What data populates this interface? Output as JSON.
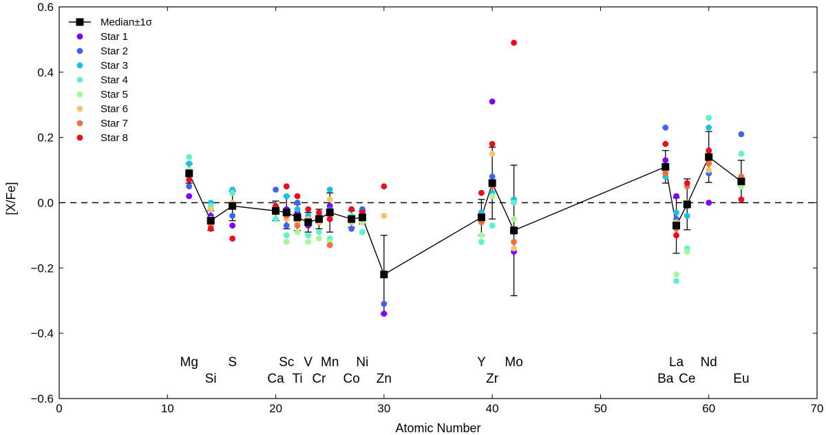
{
  "chart_data": {
    "type": "scatter",
    "xlabel": "Atomic Number",
    "ylabel": "[X/Fe]",
    "xlim": [
      0,
      70
    ],
    "ylim": [
      -0.6,
      0.6
    ],
    "x_ticks": [
      0,
      10,
      20,
      30,
      40,
      50,
      60,
      70
    ],
    "y_ticks": [
      -0.6,
      -0.4,
      -0.2,
      0.0,
      0.2,
      0.4,
      0.6
    ],
    "y_tick_labels": [
      "−0.6",
      "−0.4",
      "−0.2",
      "0.0",
      "0.2",
      "0.4",
      "0.6"
    ],
    "reference_line": {
      "y": 0.0,
      "style": "dashed"
    },
    "legend": {
      "placement": "top-left",
      "median_label": "Median±1σ"
    },
    "median_series": {
      "name": "Median±1σ",
      "color": "#000000",
      "points": [
        {
          "z": 12,
          "y": 0.09,
          "err": 0.03
        },
        {
          "z": 14,
          "y": -0.055,
          "err": 0.03
        },
        {
          "z": 16,
          "y": -0.01,
          "err": 0.045
        },
        {
          "z": 20,
          "y": -0.025,
          "err": 0.03
        },
        {
          "z": 21,
          "y": -0.03,
          "err": 0.05
        },
        {
          "z": 22,
          "y": -0.045,
          "err": 0.04
        },
        {
          "z": 23,
          "y": -0.06,
          "err": 0.03
        },
        {
          "z": 24,
          "y": -0.05,
          "err": 0.03
        },
        {
          "z": 25,
          "y": -0.03,
          "err": 0.06
        },
        {
          "z": 27,
          "y": -0.05,
          "err": 0.025
        },
        {
          "z": 28,
          "y": -0.045,
          "err": 0.02
        },
        {
          "z": 30,
          "y": -0.22,
          "err": 0.12
        },
        {
          "z": 39,
          "y": -0.045,
          "err": 0.055
        },
        {
          "z": 40,
          "y": 0.06,
          "err": 0.11
        },
        {
          "z": 42,
          "y": -0.085,
          "err": 0.2
        },
        {
          "z": 56,
          "y": 0.11,
          "err": 0.05
        },
        {
          "z": 57,
          "y": -0.07,
          "err": 0.085
        },
        {
          "z": 58,
          "y": -0.005,
          "err": 0.078
        },
        {
          "z": 60,
          "y": 0.14,
          "err": 0.078
        },
        {
          "z": 63,
          "y": 0.065,
          "err": 0.065
        }
      ]
    },
    "series": [
      {
        "name": "Star 1",
        "color": "#7f00ff",
        "points": [
          [
            12,
            0.02
          ],
          [
            14,
            -0.04
          ],
          [
            16,
            -0.07
          ],
          [
            20,
            -0.02
          ],
          [
            21,
            -0.02
          ],
          [
            22,
            -0.03
          ],
          [
            23,
            -0.07
          ],
          [
            24,
            -0.06
          ],
          [
            25,
            -0.01
          ],
          [
            27,
            -0.05
          ],
          [
            28,
            -0.06
          ],
          [
            30,
            -0.34
          ],
          [
            39,
            -0.03
          ],
          [
            40,
            0.31
          ],
          [
            42,
            -0.15
          ],
          [
            56,
            0.13
          ],
          [
            57,
            0.02
          ],
          [
            58,
            -0.01
          ],
          [
            60,
            0.0
          ],
          [
            63,
            0.06
          ]
        ]
      },
      {
        "name": "Star 2",
        "color": "#4062fa",
        "points": [
          [
            12,
            0.05
          ],
          [
            14,
            -0.06
          ],
          [
            16,
            -0.04
          ],
          [
            20,
            0.04
          ],
          [
            21,
            -0.07
          ],
          [
            22,
            0.0
          ],
          [
            23,
            -0.05
          ],
          [
            24,
            -0.04
          ],
          [
            25,
            -0.02
          ],
          [
            27,
            -0.08
          ],
          [
            28,
            -0.02
          ],
          [
            30,
            -0.31
          ],
          [
            39,
            -0.04
          ],
          [
            40,
            0.08
          ],
          [
            42,
            -0.09
          ],
          [
            56,
            0.23
          ],
          [
            57,
            -0.05
          ],
          [
            58,
            -0.01
          ],
          [
            60,
            0.09
          ],
          [
            63,
            0.21
          ]
        ]
      },
      {
        "name": "Star 3",
        "color": "#1dc0e4",
        "points": [
          [
            12,
            0.12
          ],
          [
            14,
            0.0
          ],
          [
            16,
            0.04
          ],
          [
            20,
            -0.01
          ],
          [
            21,
            0.02
          ],
          [
            22,
            -0.02
          ],
          [
            23,
            -0.04
          ],
          [
            24,
            -0.04
          ],
          [
            25,
            0.04
          ],
          [
            27,
            -0.06
          ],
          [
            28,
            -0.09
          ],
          [
            30,
            -0.22
          ],
          [
            39,
            -0.03
          ],
          [
            40,
            0.03
          ],
          [
            42,
            0.01
          ],
          [
            56,
            0.08
          ],
          [
            57,
            -0.03
          ],
          [
            58,
            -0.04
          ],
          [
            60,
            0.23
          ],
          [
            63,
            0.05
          ]
        ]
      },
      {
        "name": "Star 4",
        "color": "#5df3cc",
        "points": [
          [
            12,
            0.14
          ],
          [
            14,
            -0.01
          ],
          [
            16,
            0.03
          ],
          [
            20,
            -0.05
          ],
          [
            21,
            -0.1
          ],
          [
            22,
            -0.06
          ],
          [
            23,
            -0.1
          ],
          [
            24,
            -0.09
          ],
          [
            25,
            -0.11
          ],
          [
            27,
            -0.04
          ],
          [
            28,
            -0.09
          ],
          [
            30,
            -0.22
          ],
          [
            39,
            -0.12
          ],
          [
            40,
            -0.07
          ],
          [
            42,
            0.0
          ],
          [
            56,
            0.11
          ],
          [
            57,
            -0.24
          ],
          [
            58,
            -0.14
          ],
          [
            60,
            0.26
          ],
          [
            63,
            0.15
          ]
        ]
      },
      {
        "name": "Star 5",
        "color": "#a7f896",
        "points": [
          [
            12,
            0.1
          ],
          [
            14,
            -0.05
          ],
          [
            16,
            0.0
          ],
          [
            20,
            -0.03
          ],
          [
            21,
            -0.12
          ],
          [
            22,
            -0.09
          ],
          [
            23,
            -0.12
          ],
          [
            24,
            -0.11
          ],
          [
            25,
            -0.12
          ],
          [
            27,
            -0.05
          ],
          [
            28,
            -0.06
          ],
          [
            30,
            -0.22
          ],
          [
            39,
            -0.1
          ],
          [
            40,
            0.02
          ],
          [
            42,
            -0.05
          ],
          [
            56,
            0.1
          ],
          [
            57,
            -0.22
          ],
          [
            58,
            -0.15
          ],
          [
            60,
            0.15
          ],
          [
            63,
            0.05
          ]
        ]
      },
      {
        "name": "Star 6",
        "color": "#ebc76f",
        "points": [
          [
            12,
            0.08
          ],
          [
            14,
            -0.02
          ],
          [
            16,
            0.0
          ],
          [
            20,
            -0.03
          ],
          [
            21,
            -0.05
          ],
          [
            22,
            -0.06
          ],
          [
            23,
            -0.05
          ],
          [
            24,
            -0.06
          ],
          [
            25,
            0.01
          ],
          [
            27,
            -0.06
          ],
          [
            28,
            -0.05
          ],
          [
            30,
            -0.04
          ],
          [
            39,
            -0.05
          ],
          [
            40,
            0.15
          ],
          [
            42,
            -0.14
          ],
          [
            56,
            0.1
          ],
          [
            57,
            -0.06
          ],
          [
            58,
            0.0
          ],
          [
            60,
            0.1
          ],
          [
            63,
            0.07
          ]
        ]
      },
      {
        "name": "Star 7",
        "color": "#f36f3d",
        "points": [
          [
            12,
            0.09
          ],
          [
            14,
            -0.07
          ],
          [
            16,
            -0.01
          ],
          [
            20,
            -0.02
          ],
          [
            21,
            -0.04
          ],
          [
            22,
            -0.07
          ],
          [
            23,
            -0.06
          ],
          [
            24,
            -0.05
          ],
          [
            25,
            -0.13
          ],
          [
            27,
            -0.05
          ],
          [
            28,
            -0.04
          ],
          [
            30,
            -0.22
          ],
          [
            39,
            -0.06
          ],
          [
            40,
            0.05
          ],
          [
            42,
            -0.12
          ],
          [
            56,
            0.09
          ],
          [
            57,
            -0.08
          ],
          [
            58,
            0.05
          ],
          [
            60,
            0.12
          ],
          [
            63,
            0.08
          ]
        ]
      },
      {
        "name": "Star 8",
        "color": "#e90f1e",
        "points": [
          [
            12,
            0.07
          ],
          [
            14,
            -0.08
          ],
          [
            16,
            -0.11
          ],
          [
            20,
            -0.01
          ],
          [
            21,
            0.05
          ],
          [
            22,
            0.02
          ],
          [
            23,
            -0.02
          ],
          [
            24,
            -0.03
          ],
          [
            25,
            -0.05
          ],
          [
            27,
            -0.02
          ],
          [
            28,
            -0.03
          ],
          [
            30,
            0.05
          ],
          [
            39,
            0.03
          ],
          [
            40,
            0.18
          ],
          [
            42,
            0.49
          ],
          [
            56,
            0.18
          ],
          [
            57,
            -0.1
          ],
          [
            58,
            0.06
          ],
          [
            60,
            0.16
          ],
          [
            63,
            0.01
          ]
        ]
      }
    ],
    "element_labels": [
      {
        "symbol": "Mg",
        "z": 12,
        "row": 1
      },
      {
        "symbol": "Si",
        "z": 14,
        "row": 2
      },
      {
        "symbol": "S",
        "z": 16,
        "row": 1
      },
      {
        "symbol": "Ca",
        "z": 20,
        "row": 2
      },
      {
        "symbol": "Sc",
        "z": 21,
        "row": 1
      },
      {
        "symbol": "Ti",
        "z": 22,
        "row": 2
      },
      {
        "symbol": "V",
        "z": 23,
        "row": 1
      },
      {
        "symbol": "Cr",
        "z": 24,
        "row": 2
      },
      {
        "symbol": "Mn",
        "z": 25,
        "row": 1
      },
      {
        "symbol": "Co",
        "z": 27,
        "row": 2
      },
      {
        "symbol": "Ni",
        "z": 28,
        "row": 1
      },
      {
        "symbol": "Zn",
        "z": 30,
        "row": 2
      },
      {
        "symbol": "Y",
        "z": 39,
        "row": 1
      },
      {
        "symbol": "Zr",
        "z": 40,
        "row": 2
      },
      {
        "symbol": "Mo",
        "z": 42,
        "row": 1
      },
      {
        "symbol": "Ba",
        "z": 56,
        "row": 2
      },
      {
        "symbol": "La",
        "z": 57,
        "row": 1
      },
      {
        "symbol": "Ce",
        "z": 58,
        "row": 2
      },
      {
        "symbol": "Nd",
        "z": 60,
        "row": 1
      },
      {
        "symbol": "Eu",
        "z": 63,
        "row": 2
      }
    ]
  }
}
